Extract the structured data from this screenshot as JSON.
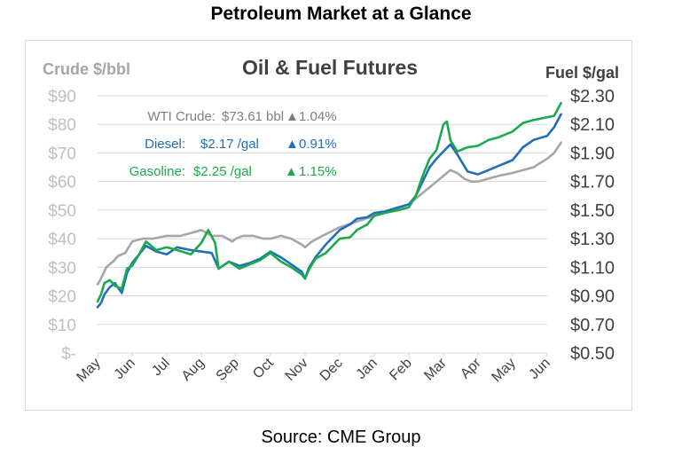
{
  "page_title": "Petroleum Market at a Glance",
  "source": "Source: CME Group",
  "colors": {
    "wti": "#a6a6a6",
    "diesel": "#1f6fba",
    "gasoline": "#1aaa4b",
    "gridline": "#d9d9d9"
  },
  "chart_data": {
    "type": "line",
    "title": "Oil & Fuel Futures",
    "ylabel": "Crude $/bbl",
    "y2label": "Fuel $/gal",
    "ylim": [
      0,
      90
    ],
    "y2lim": [
      0.5,
      2.3
    ],
    "y_ticks": [
      "$-",
      "$10",
      "$20",
      "$30",
      "$40",
      "$50",
      "$60",
      "$70",
      "$80",
      "$90"
    ],
    "y2_ticks": [
      "$0.50",
      "$0.70",
      "$0.90",
      "$1.10",
      "$1.30",
      "$1.50",
      "$1.70",
      "$1.90",
      "$2.10",
      "$2.30"
    ],
    "x_ticks": [
      "May",
      "Jun",
      "Jul",
      "Aug",
      "Sep",
      "Oct",
      "Nov",
      "Dec",
      "Jan",
      "Feb",
      "Mar",
      "Apr",
      "May",
      "Jun"
    ],
    "grid": true,
    "legend": [
      {
        "series": "WTI Crude",
        "label": "WTI Crude:",
        "price": "$73.61 bbl",
        "change": "1.04%",
        "color": "#a6a6a6"
      },
      {
        "series": "Diesel",
        "label": "Diesel:",
        "price": "$2.17 /gal",
        "change": "0.91%",
        "color": "#1f6fba"
      },
      {
        "series": "Gasoline",
        "label": "Gasoline:",
        "price": "$2.25 /gal",
        "change": "1.15%",
        "color": "#1aaa4b"
      }
    ],
    "series": [
      {
        "name": "WTI Crude",
        "axis": "left",
        "x": [
          0.0,
          0.1,
          0.25,
          0.45,
          0.6,
          0.8,
          1.0,
          1.3,
          1.6,
          2.0,
          2.4,
          2.7,
          3.0,
          3.3,
          3.6,
          3.9,
          4.0,
          4.2,
          4.5,
          4.8,
          5.0,
          5.3,
          5.6,
          5.9,
          6.0,
          6.2,
          6.5,
          7.0,
          7.5,
          8.0,
          8.5,
          9.0,
          9.3,
          9.6,
          9.8,
          10.0,
          10.2,
          10.4,
          10.6,
          10.8,
          11.0,
          11.3,
          11.6,
          12.0,
          12.3,
          12.6,
          13.0,
          13.2,
          13.4
        ],
        "values": [
          24,
          26,
          30,
          32,
          34,
          35,
          39,
          40,
          40,
          41,
          41,
          42,
          43,
          41,
          41,
          39,
          40,
          41,
          41,
          40,
          40,
          41,
          40,
          38,
          37,
          39,
          41,
          44,
          46,
          48,
          50,
          52,
          55,
          58,
          60,
          62,
          64,
          63,
          61,
          60,
          60,
          61,
          62,
          63,
          64,
          65,
          68,
          70,
          73.6
        ]
      },
      {
        "name": "Diesel",
        "axis": "right",
        "x": [
          0.0,
          0.1,
          0.2,
          0.35,
          0.5,
          0.7,
          0.85,
          1.0,
          1.2,
          1.4,
          1.7,
          2.0,
          2.3,
          2.7,
          3.0,
          3.3,
          3.5,
          3.8,
          4.1,
          4.4,
          4.7,
          5.0,
          5.3,
          5.6,
          5.9,
          6.0,
          6.1,
          6.3,
          6.6,
          7.0,
          7.3,
          7.5,
          7.8,
          8.0,
          8.3,
          8.7,
          9.0,
          9.2,
          9.4,
          9.6,
          9.8,
          10.0,
          10.2,
          10.4,
          10.7,
          11.0,
          11.3,
          11.6,
          12.0,
          12.3,
          12.6,
          13.0,
          13.2,
          13.4
        ],
        "values": [
          0.82,
          0.85,
          0.91,
          0.96,
          0.99,
          0.92,
          1.06,
          1.13,
          1.19,
          1.25,
          1.21,
          1.19,
          1.24,
          1.22,
          1.21,
          1.2,
          1.09,
          1.14,
          1.11,
          1.13,
          1.16,
          1.21,
          1.17,
          1.12,
          1.07,
          1.02,
          1.09,
          1.17,
          1.26,
          1.36,
          1.4,
          1.44,
          1.45,
          1.48,
          1.49,
          1.52,
          1.54,
          1.6,
          1.7,
          1.8,
          1.86,
          1.91,
          1.96,
          1.89,
          1.77,
          1.75,
          1.78,
          1.81,
          1.85,
          1.94,
          1.99,
          2.02,
          2.08,
          2.17
        ]
      },
      {
        "name": "Gasoline",
        "axis": "right",
        "x": [
          0.0,
          0.1,
          0.2,
          0.35,
          0.5,
          0.7,
          0.85,
          1.0,
          1.2,
          1.4,
          1.7,
          2.0,
          2.3,
          2.7,
          3.0,
          3.2,
          3.4,
          3.5,
          3.8,
          4.1,
          4.4,
          4.7,
          5.0,
          5.3,
          5.6,
          5.9,
          6.0,
          6.1,
          6.3,
          6.6,
          7.0,
          7.3,
          7.5,
          7.8,
          8.0,
          8.3,
          8.7,
          9.0,
          9.2,
          9.4,
          9.6,
          9.8,
          10.0,
          10.1,
          10.2,
          10.4,
          10.7,
          11.0,
          11.3,
          11.6,
          12.0,
          12.3,
          12.6,
          13.0,
          13.2,
          13.4
        ],
        "values": [
          0.86,
          0.91,
          0.99,
          1.01,
          0.97,
          0.95,
          1.09,
          1.11,
          1.19,
          1.28,
          1.22,
          1.24,
          1.22,
          1.19,
          1.27,
          1.36,
          1.27,
          1.09,
          1.14,
          1.09,
          1.12,
          1.15,
          1.2,
          1.14,
          1.1,
          1.05,
          1.02,
          1.08,
          1.16,
          1.2,
          1.3,
          1.31,
          1.36,
          1.4,
          1.46,
          1.48,
          1.5,
          1.52,
          1.6,
          1.74,
          1.86,
          1.92,
          2.1,
          2.12,
          1.99,
          1.91,
          1.94,
          1.95,
          1.99,
          2.01,
          2.05,
          2.11,
          2.13,
          2.15,
          2.16,
          2.25
        ]
      }
    ]
  }
}
